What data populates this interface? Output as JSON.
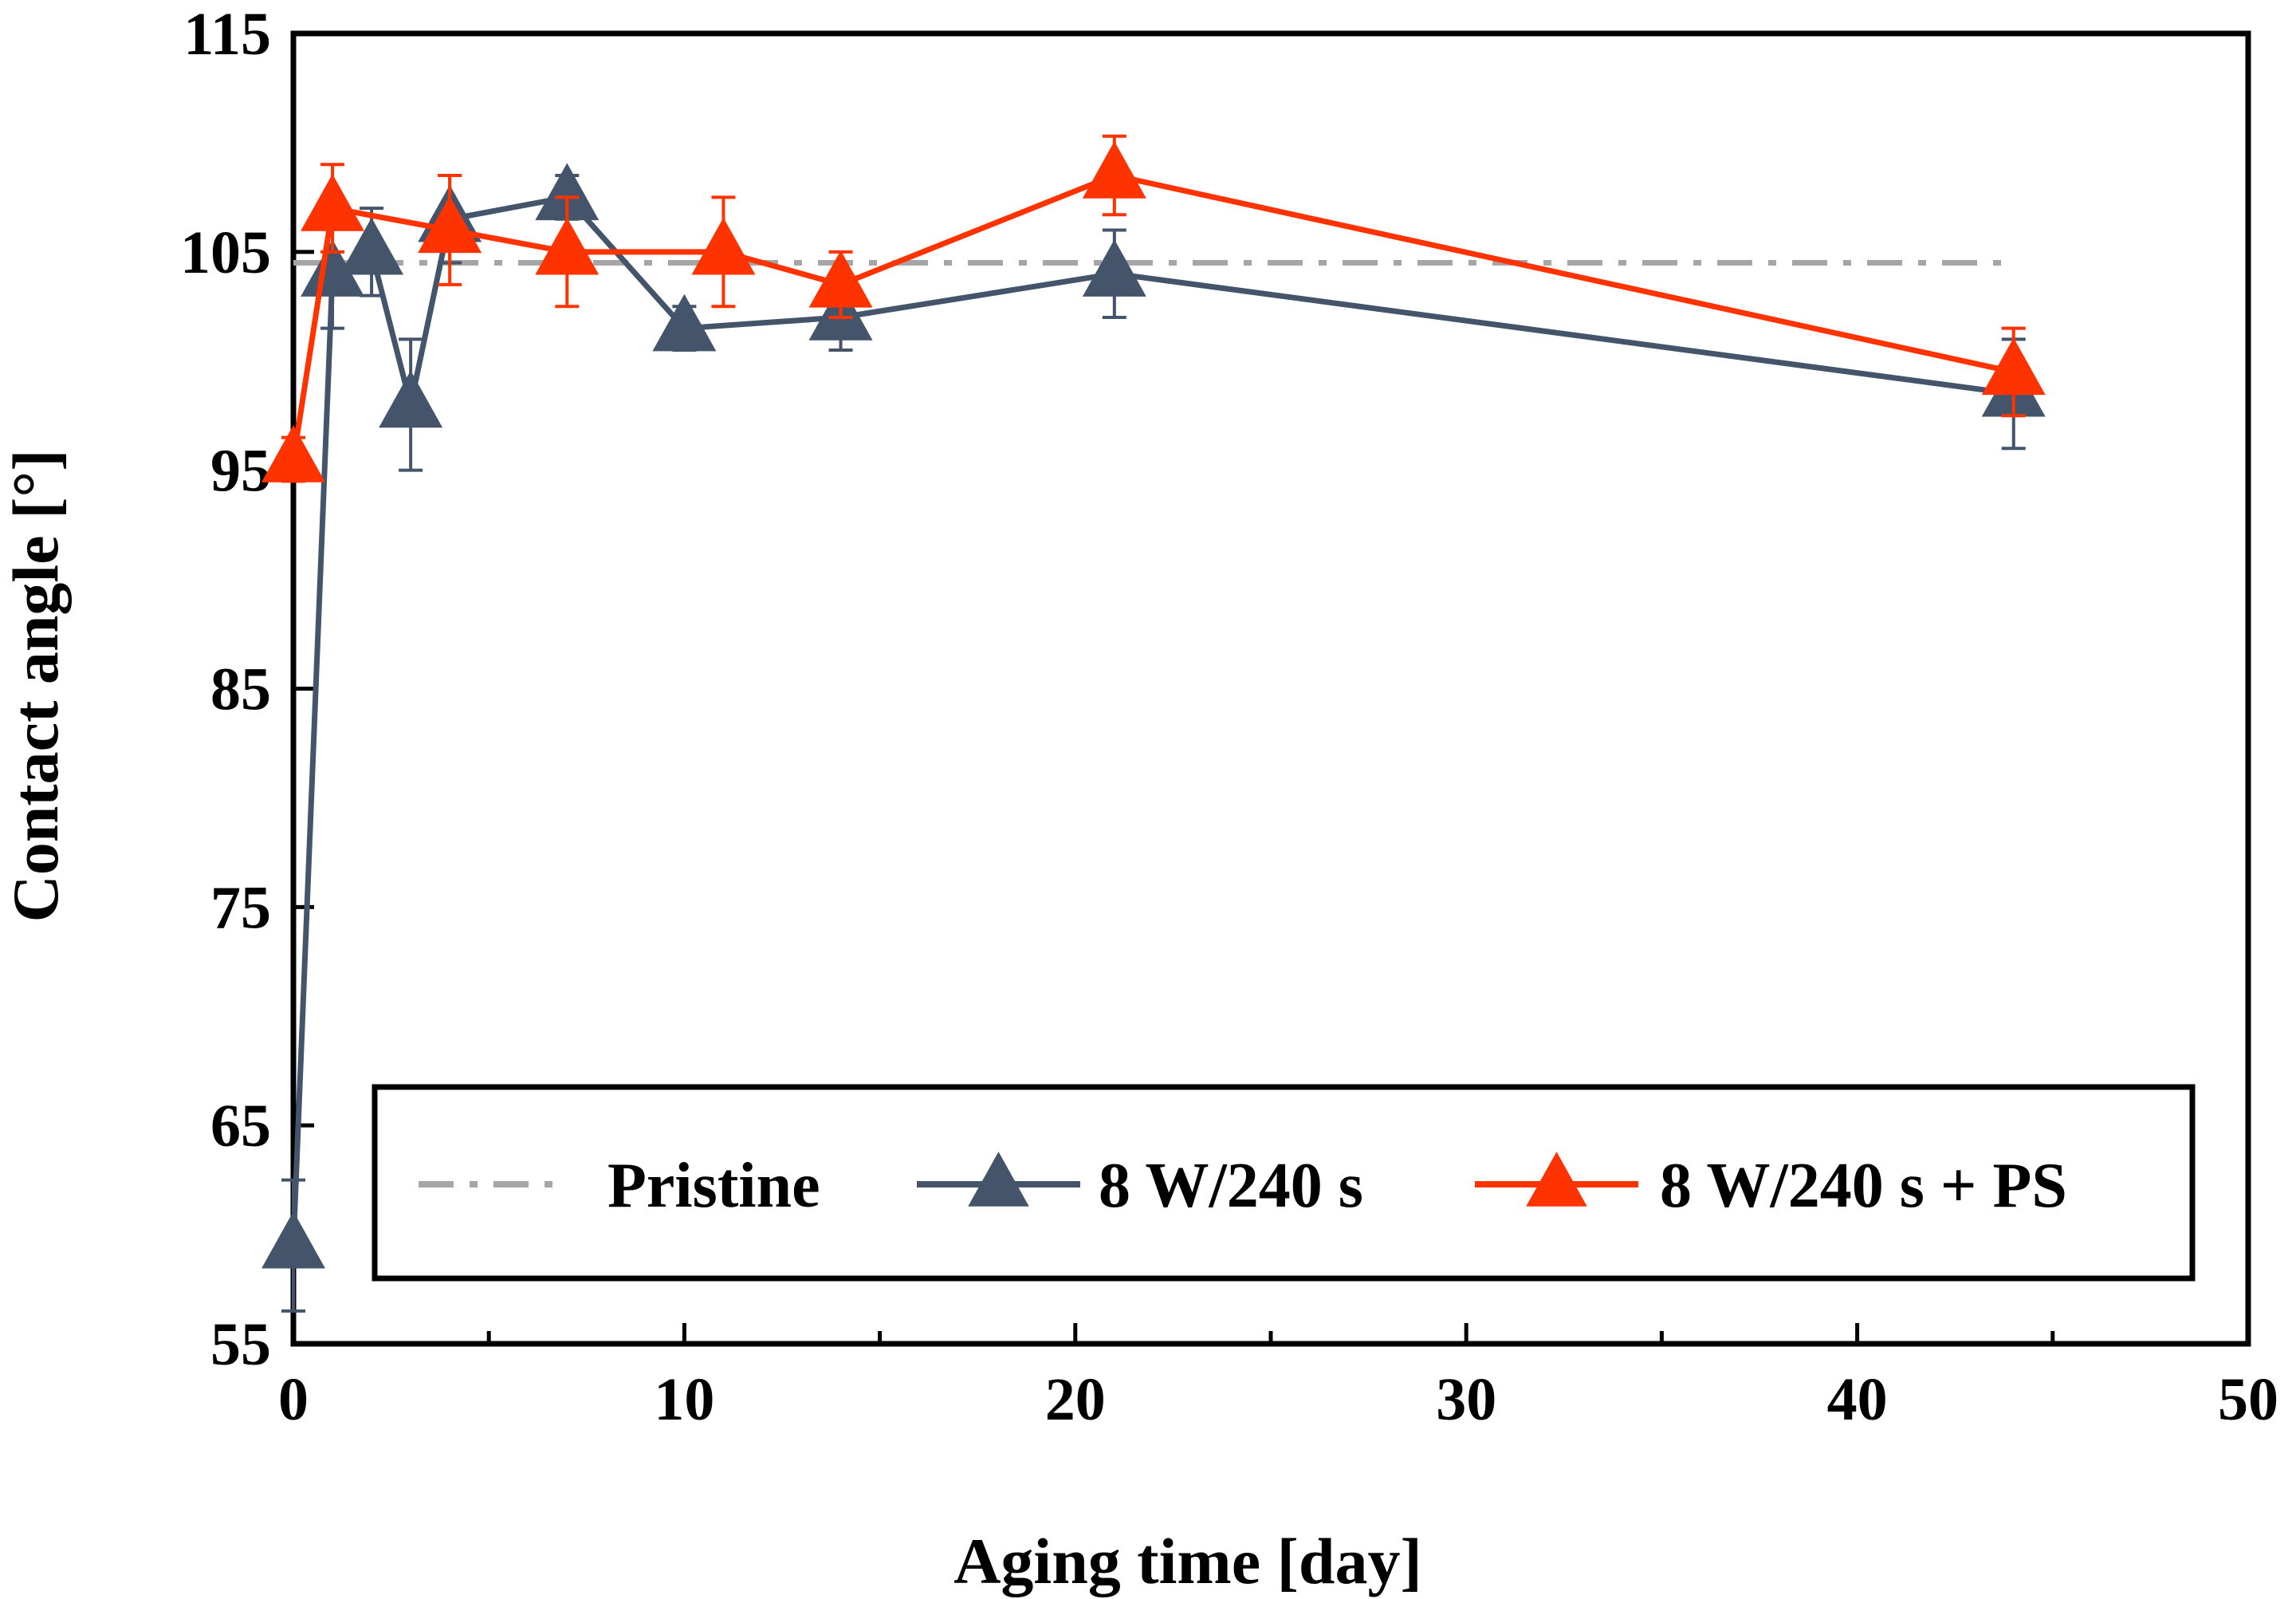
{
  "chart_data": {
    "type": "line",
    "title": "",
    "xlabel": "Aging time [day]",
    "ylabel": "Contact angle [°]",
    "xlim": [
      0,
      50
    ],
    "ylim": [
      55,
      115
    ],
    "xticks": [
      0,
      10,
      20,
      30,
      40,
      50
    ],
    "yticks": [
      55,
      65,
      75,
      85,
      95,
      105,
      115
    ],
    "x_minor_step": 5,
    "grid": false,
    "legend_position": "bottom-inside",
    "series": [
      {
        "name": "Pristine",
        "style": "dash-dot",
        "marker": "none",
        "color": "#a6a6a6",
        "x": [
          0,
          44
        ],
        "y": [
          104.5,
          104.5
        ],
        "err": [
          0,
          0
        ]
      },
      {
        "name": "8 W/240 s",
        "style": "solid",
        "marker": "triangle",
        "color": "#44546a",
        "x": [
          0,
          1,
          2,
          3,
          4,
          7,
          10,
          14,
          21,
          44
        ],
        "y": [
          59.5,
          104,
          105,
          98,
          106.5,
          107.5,
          101.5,
          102,
          104,
          98.5
        ],
        "err": [
          3,
          2.5,
          2,
          3,
          2,
          1,
          1,
          1.5,
          2,
          2.5
        ]
      },
      {
        "name": "8 W/240 s + PS",
        "style": "solid",
        "marker": "triangle",
        "color": "#ff3300",
        "x": [
          0,
          1,
          4,
          7,
          11,
          14,
          21,
          44
        ],
        "y": [
          95.5,
          107,
          106,
          105,
          105,
          103.5,
          108.5,
          99.5
        ],
        "err": [
          1,
          2,
          2.5,
          2.5,
          2.5,
          1.5,
          1.8,
          2
        ]
      }
    ]
  }
}
